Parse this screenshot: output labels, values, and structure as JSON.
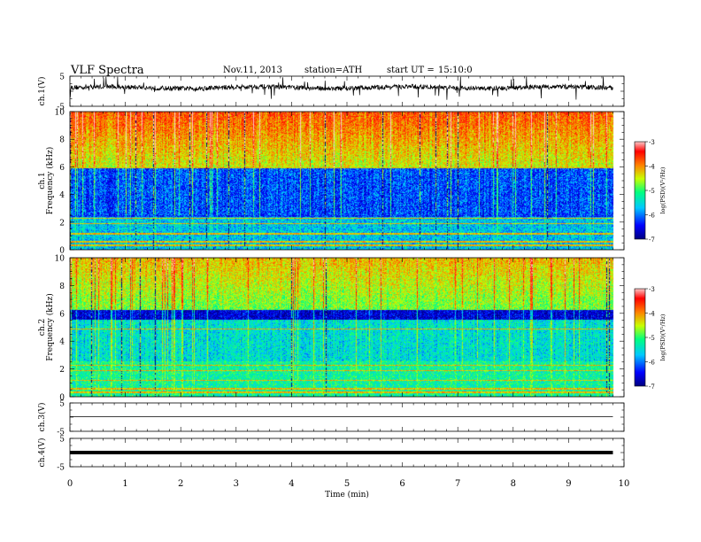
{
  "header": {
    "title": "VLF  Spectra",
    "date": "Nov.11, 2013",
    "station": "station=ATH",
    "start_label": "start  UT  =",
    "start_time": "15:10:0"
  },
  "colors": {
    "colormap": [
      "#000080",
      "#0000ff",
      "#00c8ff",
      "#00ff80",
      "#c8ff00",
      "#ff8000",
      "#ff0000",
      "#ffc8c8"
    ],
    "trace": "#000000"
  },
  "chart_data": {
    "type": "heatmap",
    "xlabel": "Time  (min)",
    "xlim": [
      0,
      10
    ],
    "x_ticks": [
      "0",
      "1",
      "2",
      "3",
      "4",
      "5",
      "6",
      "7",
      "8",
      "9",
      "10"
    ],
    "panels": [
      {
        "id": "ch1-wave",
        "type": "line",
        "ylabel": "ch.1(V)",
        "ylim": [
          -5,
          5
        ],
        "y_ticks": [
          "5",
          "-5"
        ],
        "data_end_min": 9.8
      },
      {
        "id": "ch1-spec",
        "type": "heatmap",
        "ylabel_top": "ch.1",
        "ylabel": "Frequency  (kHz)",
        "ylim": [
          0,
          10
        ],
        "y_ticks": [
          "0",
          "2",
          "4",
          "6",
          "8",
          "10"
        ],
        "colorbar": {
          "label": "log(PSD)(V²/Hz)",
          "range": [
            -7,
            -3
          ],
          "ticks": [
            "-3",
            "-4",
            "-5",
            "-6",
            "-7"
          ]
        }
      },
      {
        "id": "ch2-spec",
        "type": "heatmap",
        "ylabel_top": "ch.2",
        "ylabel": "Frequency  (kHz)",
        "ylim": [
          0,
          10
        ],
        "y_ticks": [
          "0",
          "2",
          "4",
          "6",
          "8",
          "10"
        ],
        "colorbar": {
          "label": "log(PSD)(V²/Hz)",
          "range": [
            -7,
            -3
          ],
          "ticks": [
            "-3",
            "-4",
            "-5",
            "-6",
            "-7"
          ]
        }
      },
      {
        "id": "ch3-wave",
        "type": "line",
        "ylabel": "ch.3(V)",
        "ylim": [
          -5,
          5
        ],
        "y_ticks": [
          "5",
          "-5"
        ]
      },
      {
        "id": "ch4-wave",
        "type": "line",
        "ylabel": "ch.4(V)",
        "ylim": [
          -5,
          5
        ],
        "y_ticks": [
          "5",
          "-5"
        ]
      }
    ]
  }
}
